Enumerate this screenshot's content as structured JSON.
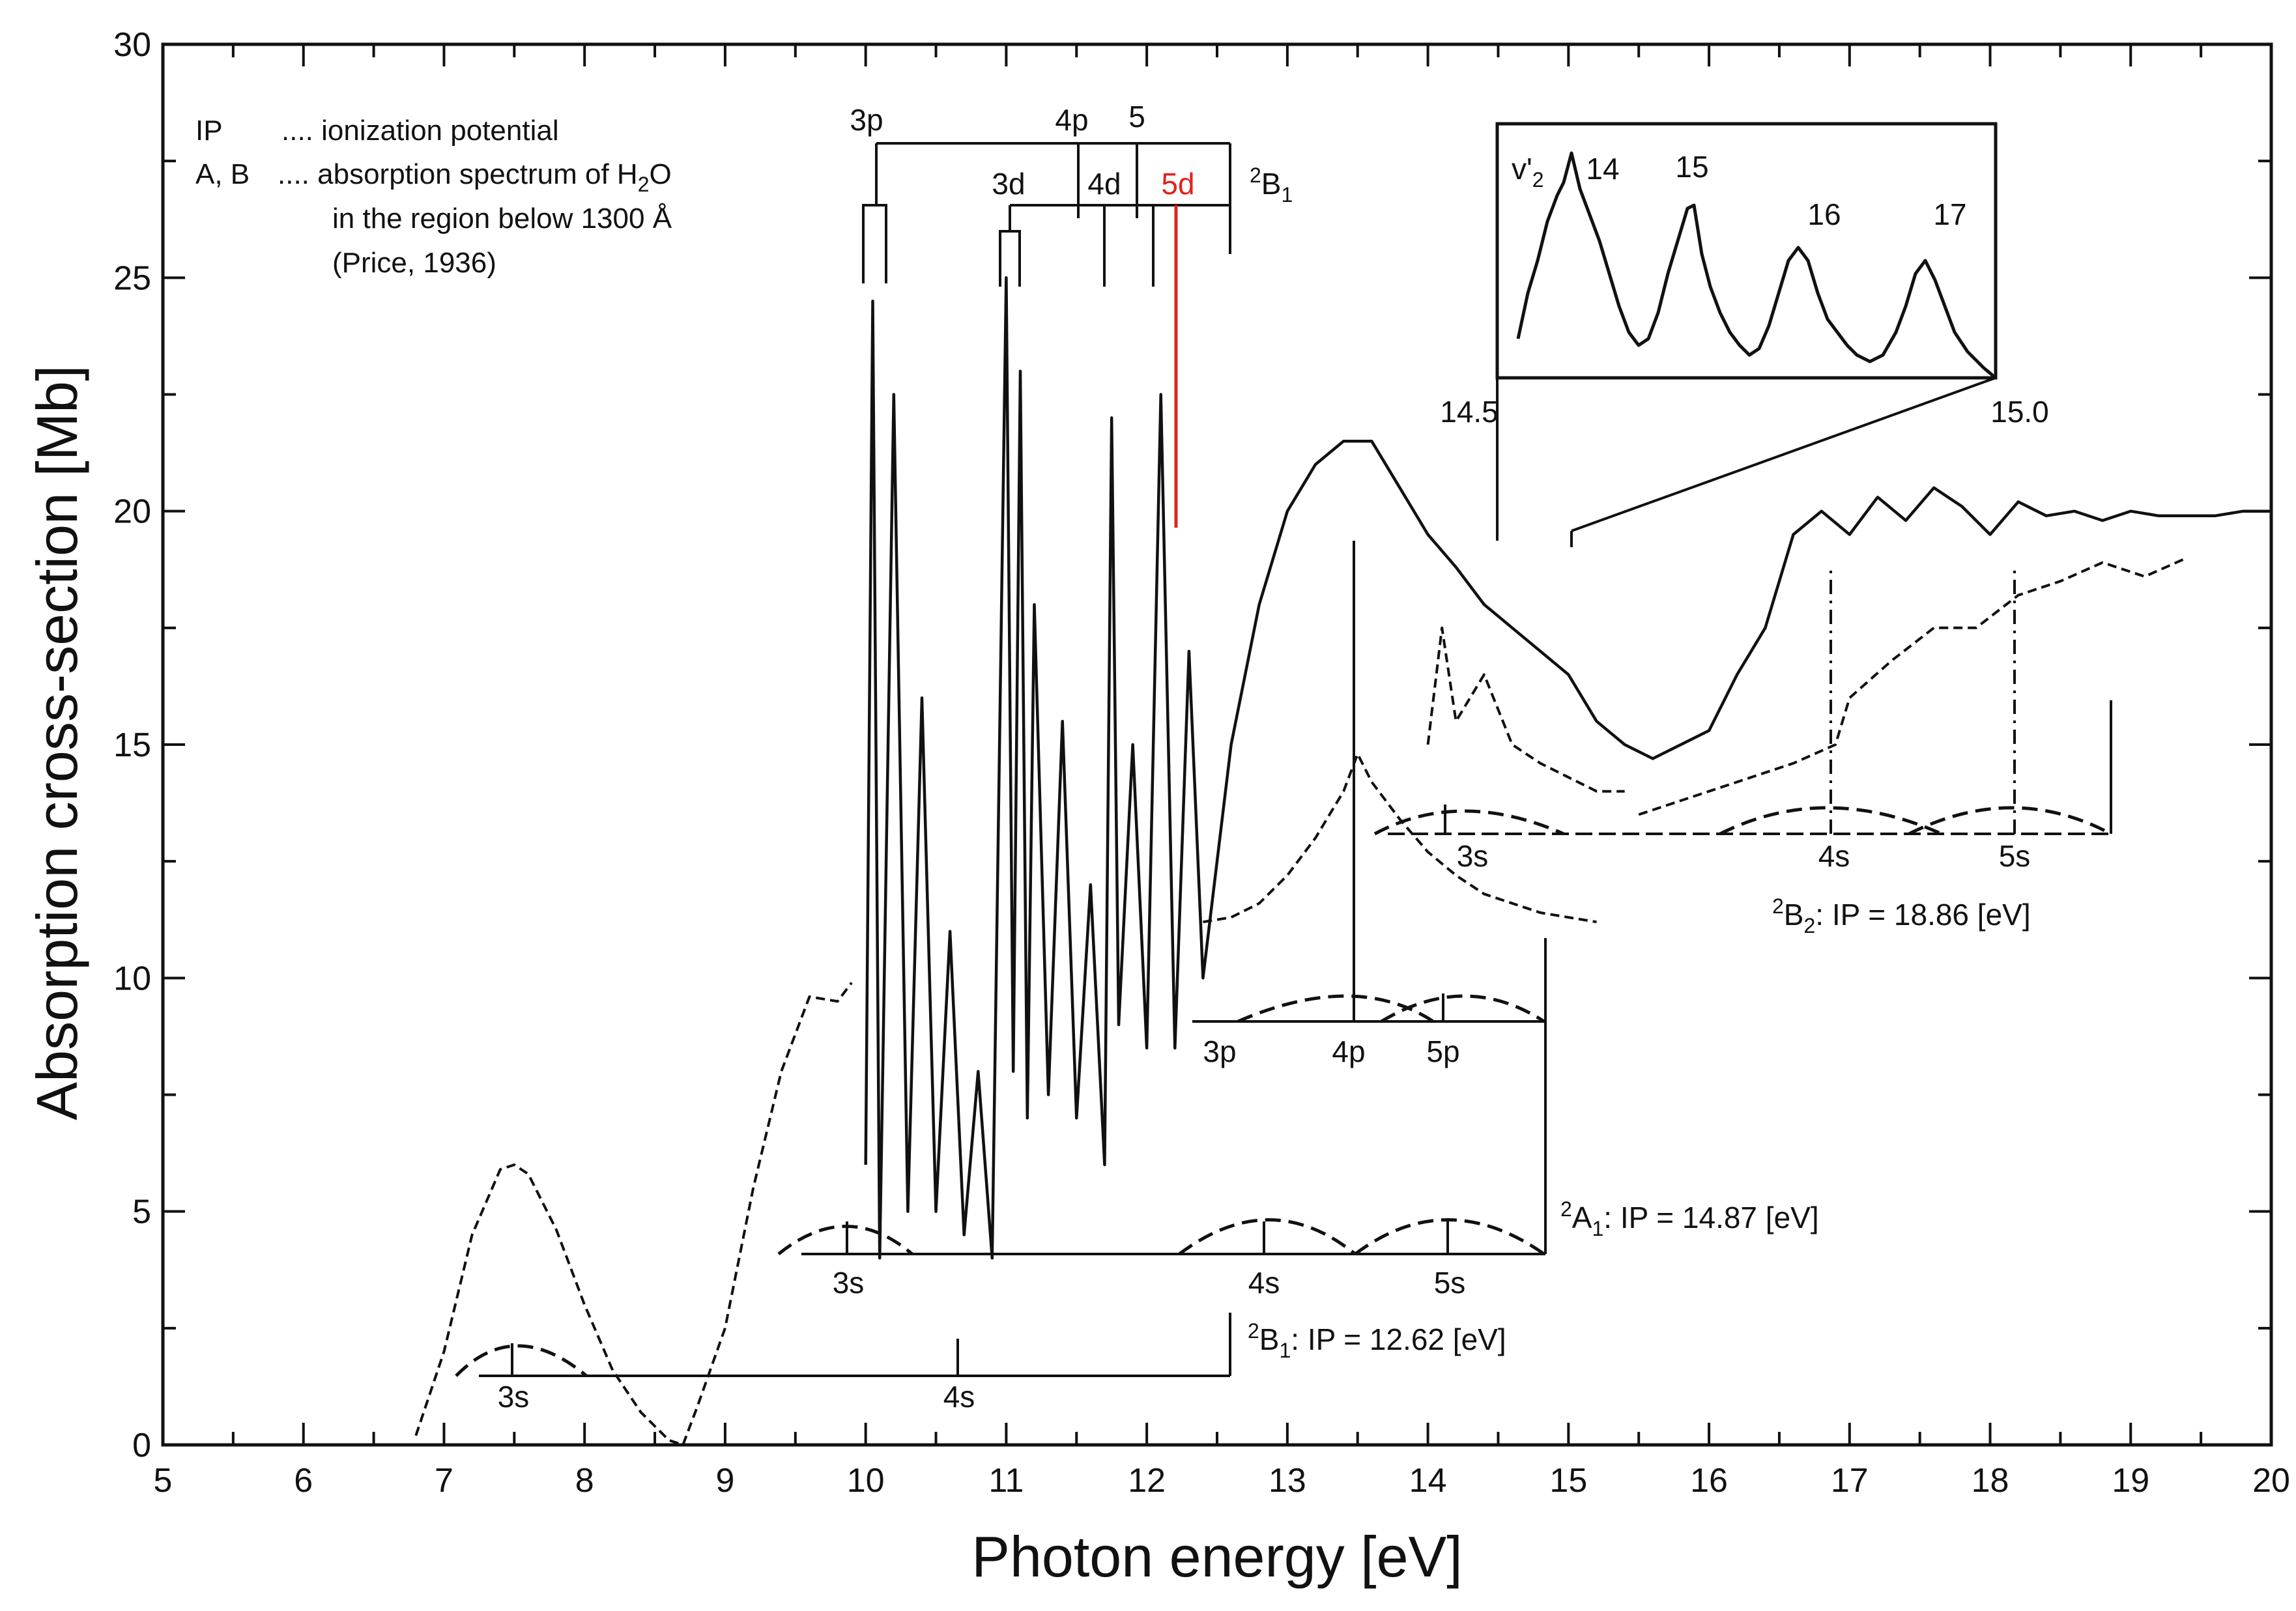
{
  "chart_data": {
    "type": "line",
    "xlabel": "Photon energy [eV]",
    "ylabel": "Absorption cross-section [Mb]",
    "xlim": [
      5,
      20
    ],
    "ylim": [
      0,
      30
    ],
    "x_ticks": [
      "5",
      "6",
      "7",
      "8",
      "9",
      "10",
      "11",
      "12",
      "13",
      "14",
      "15",
      "16",
      "17",
      "18",
      "19",
      "20"
    ],
    "y_ticks": [
      "0",
      "5",
      "10",
      "15",
      "20",
      "25",
      "30"
    ],
    "grid": false,
    "legend": {
      "line1_key": "IP",
      "line1_text": ".... ionization potential",
      "line2_key": "A, B",
      "line2_text": ".... absorption spectrum of H",
      "line2_sub": "2",
      "line2_end": "O",
      "line3": "in the region below 1300 Å",
      "line4": "(Price, 1936)"
    },
    "series": [
      {
        "style": "dashed",
        "x": [
          6.8,
          7.0,
          7.2,
          7.4,
          7.5,
          7.6,
          7.8,
          8.0,
          8.2,
          8.4,
          8.6,
          8.7,
          8.8,
          9.0,
          9.2,
          9.4,
          9.5,
          9.6,
          9.8,
          9.9
        ],
        "y": [
          0.2,
          2.0,
          4.5,
          5.9,
          6.0,
          5.8,
          4.6,
          3.0,
          1.6,
          0.7,
          0.1,
          0.0,
          0.8,
          2.5,
          5.5,
          8.0,
          8.8,
          9.6,
          9.5,
          9.9
        ]
      },
      {
        "style": "solid",
        "x": [
          10.0,
          10.05,
          10.1,
          10.2,
          10.3,
          10.4,
          10.5,
          10.6,
          10.7,
          10.8,
          10.9,
          11.0,
          11.05,
          11.1,
          11.15,
          11.2,
          11.3,
          11.4,
          11.5,
          11.6,
          11.7,
          11.75,
          11.8,
          11.9,
          12.0,
          12.1,
          12.2,
          12.3,
          12.4,
          12.6,
          12.8,
          13.0,
          13.2,
          13.4,
          13.6,
          13.8,
          14.0,
          14.2,
          14.4,
          14.6,
          14.8,
          15.0,
          15.2,
          15.4,
          15.6,
          15.8,
          16.0,
          16.2,
          16.4,
          16.6,
          16.8,
          17.0,
          17.2,
          17.4,
          17.6,
          17.8,
          18.0,
          18.2,
          18.4,
          18.6,
          18.8,
          19.0,
          19.2,
          19.4,
          19.6,
          19.8,
          20.0
        ],
        "y": [
          6.0,
          24.5,
          4.0,
          22.5,
          5.0,
          16.0,
          5.0,
          11.0,
          4.5,
          8.0,
          4.0,
          25.0,
          8.0,
          23.0,
          7.0,
          18.0,
          7.5,
          15.5,
          7.0,
          12.0,
          6.0,
          22.0,
          9.0,
          15.0,
          8.5,
          22.5,
          8.5,
          17.0,
          10.0,
          15.0,
          18.0,
          20.0,
          21.0,
          21.5,
          21.5,
          20.5,
          19.5,
          18.8,
          18.0,
          17.5,
          17.0,
          16.5,
          15.5,
          15.0,
          14.7,
          15.0,
          15.3,
          16.5,
          17.5,
          19.5,
          20.0,
          19.5,
          20.3,
          19.8,
          20.5,
          20.1,
          19.5,
          20.2,
          19.9,
          20.0,
          19.8,
          20.0,
          19.9,
          19.9,
          19.9,
          20.0,
          20.0
        ]
      },
      {
        "style": "dashed",
        "x": [
          12.4,
          12.6,
          12.8,
          13.0,
          13.2,
          13.4,
          13.5,
          13.6,
          13.8,
          14.0,
          14.2,
          14.4,
          14.6,
          14.8,
          15.0,
          15.2
        ],
        "y": [
          11.2,
          11.3,
          11.6,
          12.2,
          13.0,
          14.0,
          14.8,
          14.2,
          13.4,
          12.7,
          12.2,
          11.8,
          11.6,
          11.4,
          11.3,
          11.2
        ]
      },
      {
        "style": "dashed",
        "x": [
          14.0,
          14.1,
          14.2,
          14.4,
          14.6,
          14.8,
          15.0,
          15.2,
          15.4
        ],
        "y": [
          15.0,
          17.5,
          15.5,
          16.5,
          15.0,
          14.6,
          14.3,
          14.0,
          14.0
        ]
      },
      {
        "style": "dashed",
        "x": [
          15.5,
          15.8,
          16.0,
          16.3,
          16.6,
          16.9,
          17.0,
          17.3,
          17.6,
          17.9,
          18.2,
          18.5,
          18.8,
          19.1,
          19.4
        ],
        "y": [
          13.5,
          13.8,
          14.0,
          14.3,
          14.6,
          15.0,
          16.0,
          16.8,
          17.5,
          17.5,
          18.2,
          18.5,
          18.9,
          18.6,
          19.0
        ]
      }
    ],
    "labels": {
      "ion_3s_low": "3s",
      "ion_4s_low": "4s",
      "b1_ip": "B",
      "b1_ip_pre": "2",
      "b1_ip_sub": "1",
      "b1_ip_rest": ": IP = 12.62 [eV]",
      "a1_3s": "3s",
      "a1_4s": "4s",
      "a1_5s": "5s",
      "a1_ip_pre": "2",
      "a1_ip": "A",
      "a1_ip_sub": "1",
      "a1_ip_rest": ": IP = 14.87 [eV]",
      "p_3p": "3p",
      "p_4p": "4p",
      "p_5p": "5p",
      "b2_3s": "3s",
      "b2_4s": "4s",
      "b2_5s": "5s",
      "b2_ip_pre": "2",
      "b2_ip": "B",
      "b2_ip_sub": "2",
      "b2_ip_rest": ": IP = 18.86 [eV]",
      "top_3p": "3p",
      "top_4p": "4p",
      "top_5": "5",
      "top_3d": "3d",
      "top_4d": "4d",
      "top_5d": "5d",
      "top_b1_pre": "2",
      "top_b1": "B",
      "top_b1_sub": "1",
      "inset_v": "v'",
      "inset_v_sub": "2",
      "inset_14": "14",
      "inset_15": "15",
      "inset_16": "16",
      "inset_17": "17",
      "inset_x_left": "14.5",
      "inset_x_right": "15.0"
    },
    "colors": {
      "ink": "#111111",
      "highlight": "#e0231e"
    }
  }
}
